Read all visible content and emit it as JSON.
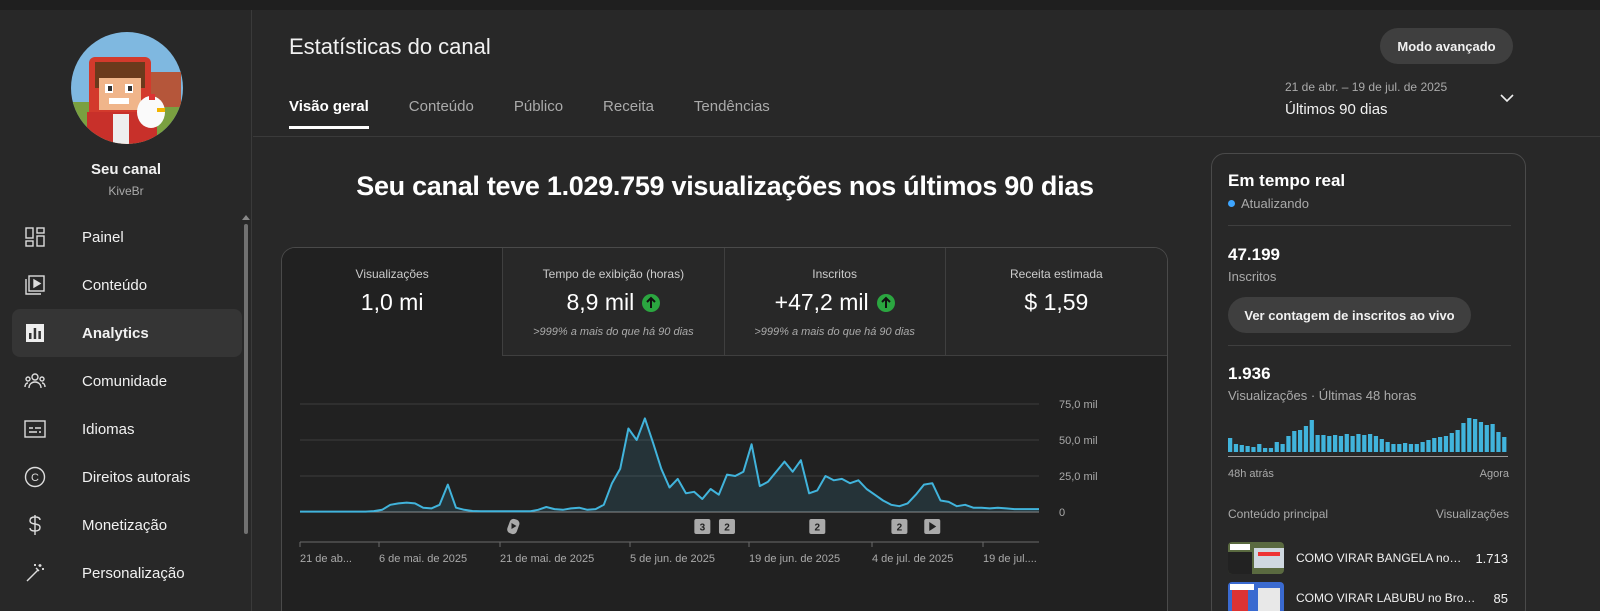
{
  "sidebar": {
    "channel_name": "Seu canal",
    "channel_handle": "KiveBr",
    "items": [
      {
        "label": "Painel",
        "icon": "dashboard-icon"
      },
      {
        "label": "Conteúdo",
        "icon": "content-icon"
      },
      {
        "label": "Analytics",
        "icon": "analytics-icon",
        "active": true
      },
      {
        "label": "Comunidade",
        "icon": "community-icon"
      },
      {
        "label": "Idiomas",
        "icon": "subtitles-icon"
      },
      {
        "label": "Direitos autorais",
        "icon": "copyright-icon"
      },
      {
        "label": "Monetização",
        "icon": "dollar-icon"
      },
      {
        "label": "Personalização",
        "icon": "magic-wand-icon"
      }
    ]
  },
  "header": {
    "title": "Estatísticas do canal",
    "advanced_button": "Modo avançado",
    "tabs": [
      "Visão geral",
      "Conteúdo",
      "Público",
      "Receita",
      "Tendências"
    ],
    "date_range": "21 de abr. – 19 de jul. de 2025",
    "date_label": "Últimos 90 dias"
  },
  "headline": "Seu canal teve 1.029.759 visualizações nos últimos 90 dias",
  "metrics": [
    {
      "label": "Visualizações",
      "value": "1,0 mi",
      "sub": "",
      "up": false
    },
    {
      "label": "Tempo de exibição (horas)",
      "value": "8,9 mil",
      "sub": ">999% a mais do que há 90 dias",
      "up": true
    },
    {
      "label": "Inscritos",
      "value": "+47,2 mil",
      "sub": ">999% a mais do que há 90 dias",
      "up": true
    },
    {
      "label": "Receita estimada",
      "value": "$ 1,59",
      "sub": "",
      "up": false
    }
  ],
  "colors": {
    "accent": "#3ea6ff",
    "up": "#2ba640",
    "line": "#41b4dc"
  },
  "chart_data": {
    "type": "line",
    "x_labels": [
      "21 de ab...",
      "6 de mai. de 2025",
      "21 de mai. de 2025",
      "5 de jun. de 2025",
      "19 de jun. de 2025",
      "4 de jul. de 2025",
      "19 de jul...."
    ],
    "y_ticks": [
      "0",
      "25,0 mil",
      "50,0 mil",
      "75,0 mil"
    ],
    "ylim": [
      0,
      75000
    ],
    "values": [
      300,
      300,
      300,
      300,
      300,
      300,
      300,
      300,
      300,
      600,
      1500,
      5000,
      6000,
      6500,
      6000,
      3000,
      2500,
      5000,
      19000,
      3000,
      1500,
      700,
      500,
      500,
      500,
      500,
      500,
      500,
      500,
      1500,
      3500,
      2000,
      1500,
      2500,
      3000,
      1500,
      2000,
      5000,
      20000,
      30000,
      58000,
      50000,
      65000,
      48000,
      30000,
      17000,
      23000,
      13000,
      14000,
      9000,
      16000,
      12000,
      26000,
      25000,
      28000,
      47000,
      18000,
      21000,
      28000,
      35000,
      28000,
      36000,
      13000,
      15000,
      25000,
      22000,
      23000,
      20000,
      22000,
      16000,
      12000,
      8000,
      5000,
      4000,
      6000,
      12000,
      19000,
      20000,
      8000,
      7000,
      4000,
      5000,
      3000,
      3000,
      2500,
      3000,
      2500,
      2000,
      2000,
      2000,
      2000
    ],
    "markers": [
      {
        "label": "shorts-icon"
      },
      {
        "label": "3"
      },
      {
        "label": "2"
      },
      {
        "label": "2"
      },
      {
        "label": "2"
      },
      {
        "label": "play-icon"
      }
    ]
  },
  "realtime": {
    "title": "Em tempo real",
    "status": "Atualizando",
    "subs_value": "47.199",
    "subs_label": "Inscritos",
    "live_button": "Ver contagem de inscritos ao vivo",
    "views_value": "1.936",
    "views_label": "Visualizações · Últimas 48 horas",
    "bars": [
      14,
      8,
      7,
      6,
      5,
      8,
      4,
      4,
      10,
      8,
      16,
      21,
      22,
      26,
      32,
      17,
      17,
      16,
      17,
      16,
      18,
      16,
      18,
      17,
      18,
      16,
      13,
      10,
      8,
      8,
      9,
      8,
      8,
      10,
      12,
      14,
      15,
      16,
      19,
      22,
      29,
      34,
      33,
      30,
      27,
      28,
      20,
      15
    ],
    "left_label": "48h atrás",
    "right_label": "Agora",
    "top_content_label": "Conteúdo principal",
    "views_col_label": "Visualizações",
    "videos": [
      {
        "title": "COMO VIRAR BANGELA no Brookhaven",
        "views": "1.713"
      },
      {
        "title": "COMO VIRAR LABUBU no Brookhaven",
        "views": "85"
      }
    ]
  }
}
